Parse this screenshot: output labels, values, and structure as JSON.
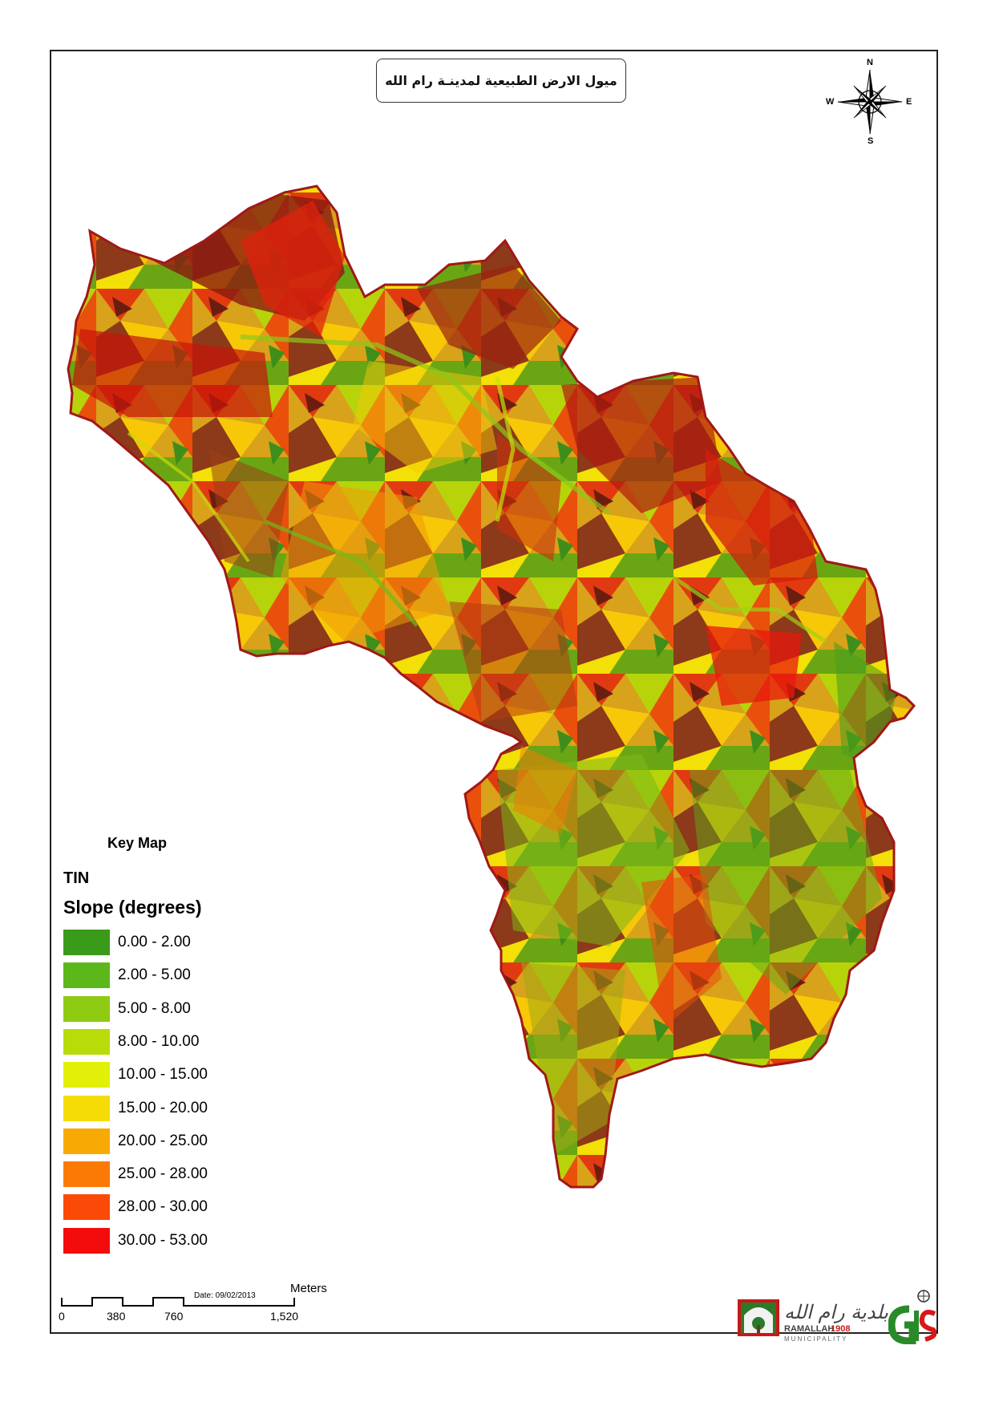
{
  "map": {
    "title": "ميول الارض الطبيعية لمدينـة رام الله",
    "compass": {
      "north": "N",
      "south": "S",
      "east": "E",
      "west": "W",
      "icon": "compass-rose-icon"
    },
    "key_map_title": "Key Map",
    "legend": {
      "layer": "TIN",
      "field": "Slope (degrees)",
      "classes": [
        {
          "label": "0.00 - 2.00",
          "color": "#3a9a1a"
        },
        {
          "label": "2.00 - 5.00",
          "color": "#5cb81a"
        },
        {
          "label": "5.00 - 8.00",
          "color": "#8ecb12"
        },
        {
          "label": "8.00 - 10.00",
          "color": "#b8dc0a"
        },
        {
          "label": "10.00 - 15.00",
          "color": "#e2ef08"
        },
        {
          "label": "15.00 - 20.00",
          "color": "#f6dc06"
        },
        {
          "label": "20.00 - 25.00",
          "color": "#f8aa04"
        },
        {
          "label": "25.00 - 28.00",
          "color": "#fb7a06"
        },
        {
          "label": "28.00 - 30.00",
          "color": "#fb4a08"
        },
        {
          "label": "30.00 - 53.00",
          "color": "#f40c0c"
        }
      ]
    },
    "scale_bar": {
      "ticks": [
        "0",
        "380",
        "760",
        "1,520"
      ],
      "units": "Meters",
      "date": "Date: 09/02/2013"
    },
    "boundary_color": "#a01818",
    "logos": {
      "municipality_icon": "ramallah-municipality-logo",
      "gis_icon": "gis-logo"
    }
  }
}
